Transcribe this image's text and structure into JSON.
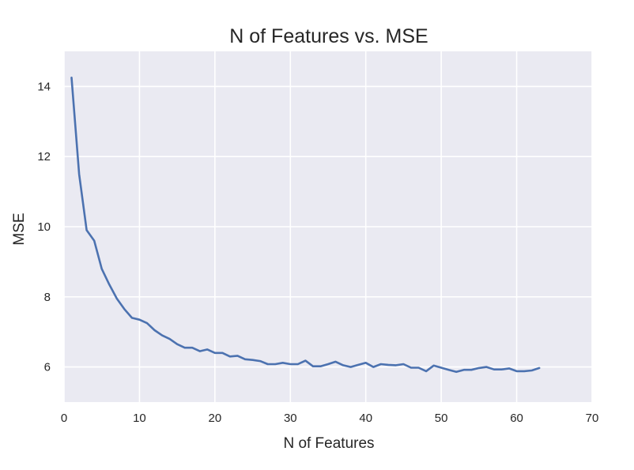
{
  "chart_data": {
    "type": "line",
    "title": "N of Features vs. MSE",
    "xlabel": "N of Features",
    "ylabel": "MSE",
    "xlim": [
      0,
      70
    ],
    "ylim": [
      5,
      15
    ],
    "grid": true,
    "xticks": [
      0,
      10,
      20,
      30,
      40,
      50,
      60,
      70
    ],
    "yticks": [
      6,
      8,
      10,
      12,
      14
    ],
    "series": [
      {
        "color": "#4c72b0",
        "x": [
          1,
          2,
          3,
          4,
          5,
          6,
          7,
          8,
          9,
          10,
          11,
          12,
          13,
          14,
          15,
          16,
          17,
          18,
          19,
          20,
          21,
          22,
          23,
          24,
          25,
          26,
          27,
          28,
          29,
          30,
          31,
          32,
          33,
          34,
          35,
          36,
          37,
          38,
          39,
          40,
          41,
          42,
          43,
          44,
          45,
          46,
          47,
          48,
          49,
          50,
          51,
          52,
          53,
          54,
          55,
          56,
          57,
          58,
          59,
          60,
          61,
          62,
          63
        ],
        "y": [
          14.25,
          11.5,
          9.9,
          9.6,
          8.8,
          8.35,
          7.95,
          7.65,
          7.4,
          7.35,
          7.25,
          7.05,
          6.9,
          6.8,
          6.65,
          6.55,
          6.55,
          6.45,
          6.5,
          6.4,
          6.4,
          6.3,
          6.32,
          6.22,
          6.2,
          6.17,
          6.08,
          6.08,
          6.12,
          6.08,
          6.08,
          6.18,
          6.02,
          6.02,
          6.08,
          6.15,
          6.05,
          6.0,
          6.06,
          6.12,
          6.0,
          6.08,
          6.06,
          6.05,
          6.08,
          5.98,
          5.98,
          5.88,
          6.04,
          5.98,
          5.92,
          5.86,
          5.92,
          5.92,
          5.97,
          6.0,
          5.93,
          5.93,
          5.96,
          5.88,
          5.88,
          5.9,
          5.97
        ]
      }
    ]
  }
}
